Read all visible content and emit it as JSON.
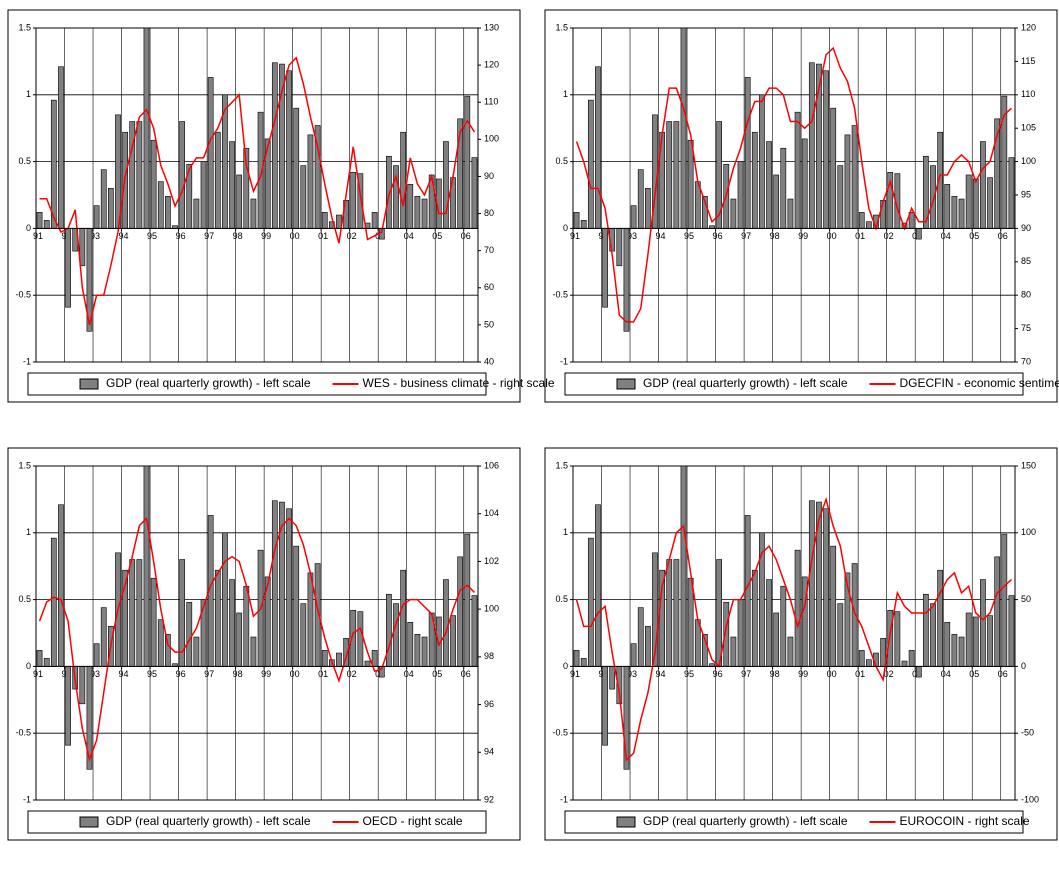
{
  "chart_data": [
    {
      "type": "bar_line",
      "categories": [
        "91",
        null,
        null,
        null,
        "92",
        null,
        null,
        null,
        "93",
        null,
        null,
        null,
        "94",
        null,
        null,
        null,
        "95",
        null,
        null,
        null,
        "96",
        null,
        null,
        null,
        "97",
        null,
        null,
        null,
        "98",
        null,
        null,
        null,
        "99",
        null,
        null,
        null,
        "00",
        null,
        null,
        null,
        "01",
        null,
        null,
        null,
        "02",
        null,
        null,
        null,
        "03",
        null,
        null,
        null,
        "04",
        null,
        null,
        null,
        "05",
        null,
        null,
        null,
        "06",
        null
      ],
      "series": [
        {
          "name": "GDP (real quarterly growth) - left scale",
          "color": "#808080",
          "values": [
            0.12,
            0.06,
            0.96,
            1.21,
            -0.59,
            -0.17,
            -0.28,
            -0.77,
            0.17,
            0.44,
            0.3,
            0.85,
            0.72,
            0.8,
            0.8,
            1.5,
            0.66,
            0.35,
            0.24,
            0.02,
            0.8,
            0.48,
            0.22,
            0.5,
            1.13,
            0.72,
            1.0,
            0.65,
            0.4,
            0.6,
            0.22,
            0.87,
            0.67,
            1.24,
            1.23,
            1.18,
            0.9,
            0.47,
            0.7,
            0.77,
            0.12,
            0.05,
            0.1,
            0.21,
            0.42,
            0.41,
            0.04,
            0.12,
            -0.08,
            0.54,
            0.47,
            0.72,
            0.33,
            0.24,
            0.22,
            0.4,
            0.37,
            0.65,
            0.38,
            0.82,
            0.99,
            0.53
          ]
        },
        {
          "name": "WES - business climate - right scale",
          "color": "#ff0000",
          "axis": "y2",
          "values": [
            84,
            84,
            79,
            75,
            76,
            81,
            60,
            50,
            58,
            58,
            66,
            75,
            90,
            98,
            106,
            108,
            103,
            93,
            88,
            82,
            86,
            92,
            95,
            95,
            100,
            103,
            108,
            110,
            112,
            93,
            86,
            90,
            98,
            105,
            113,
            120,
            122,
            115,
            106,
            98,
            88,
            79,
            72,
            85,
            98,
            85,
            73,
            74,
            75,
            85,
            90,
            82,
            95,
            88,
            85,
            90,
            80,
            80,
            90,
            102,
            105,
            102
          ]
        }
      ],
      "ylim": [
        -1,
        1.5
      ],
      "yticks": [
        -1,
        -0.5,
        0,
        0.5,
        1,
        1.5
      ],
      "y2lim": [
        40,
        130
      ],
      "y2ticks": [
        40,
        50,
        60,
        70,
        80,
        90,
        100,
        110,
        120,
        130
      ],
      "grid": true
    },
    {
      "type": "bar_line",
      "categories": [
        "91",
        null,
        null,
        null,
        "92",
        null,
        null,
        null,
        "93",
        null,
        null,
        null,
        "94",
        null,
        null,
        null,
        "95",
        null,
        null,
        null,
        "96",
        null,
        null,
        null,
        "97",
        null,
        null,
        null,
        "98",
        null,
        null,
        null,
        "99",
        null,
        null,
        null,
        "00",
        null,
        null,
        null,
        "01",
        null,
        null,
        null,
        "02",
        null,
        null,
        null,
        "03",
        null,
        null,
        null,
        "04",
        null,
        null,
        null,
        "05",
        null,
        null,
        null,
        "06",
        null
      ],
      "series": [
        {
          "name": "GDP (real quarterly growth) - left scale",
          "color": "#808080",
          "values": [
            0.12,
            0.06,
            0.96,
            1.21,
            -0.59,
            -0.17,
            -0.28,
            -0.77,
            0.17,
            0.44,
            0.3,
            0.85,
            0.72,
            0.8,
            0.8,
            1.5,
            0.66,
            0.35,
            0.24,
            0.02,
            0.8,
            0.48,
            0.22,
            0.5,
            1.13,
            0.72,
            1.0,
            0.65,
            0.4,
            0.6,
            0.22,
            0.87,
            0.67,
            1.24,
            1.23,
            1.18,
            0.9,
            0.47,
            0.7,
            0.77,
            0.12,
            0.05,
            0.1,
            0.21,
            0.42,
            0.41,
            0.04,
            0.12,
            -0.08,
            0.54,
            0.47,
            0.72,
            0.33,
            0.24,
            0.22,
            0.4,
            0.37,
            0.65,
            0.38,
            0.82,
            0.99,
            0.53
          ]
        },
        {
          "name": "DGECFIN - economic sentiment - right scale",
          "color": "#ff0000",
          "axis": "y2",
          "values": [
            103,
            100,
            96,
            96,
            93,
            86,
            77,
            76,
            76,
            78,
            86,
            95,
            104,
            111,
            111,
            108,
            104,
            97,
            94,
            91,
            92,
            95,
            99,
            102,
            106,
            109,
            109,
            111,
            111,
            110,
            106,
            106,
            105,
            106,
            111,
            116,
            117,
            114,
            112,
            108,
            100,
            93,
            90,
            94,
            97,
            93,
            90,
            93,
            91,
            91,
            94,
            98,
            98,
            100,
            101,
            100,
            97,
            99,
            100,
            104,
            107,
            108
          ]
        }
      ],
      "ylim": [
        -1,
        1.5
      ],
      "yticks": [
        -1,
        -0.5,
        0,
        0.5,
        1,
        1.5
      ],
      "y2lim": [
        70,
        120
      ],
      "y2ticks": [
        70,
        75,
        80,
        85,
        90,
        95,
        100,
        105,
        110,
        115,
        120
      ],
      "grid": true
    },
    {
      "type": "bar_line",
      "categories": [
        "91",
        null,
        null,
        null,
        "92",
        null,
        null,
        null,
        "93",
        null,
        null,
        null,
        "94",
        null,
        null,
        null,
        "95",
        null,
        null,
        null,
        "96",
        null,
        null,
        null,
        "97",
        null,
        null,
        null,
        "98",
        null,
        null,
        null,
        "99",
        null,
        null,
        null,
        "00",
        null,
        null,
        null,
        "01",
        null,
        null,
        null,
        "02",
        null,
        null,
        null,
        "03",
        null,
        null,
        null,
        "04",
        null,
        null,
        null,
        "05",
        null,
        null,
        null,
        "06",
        null
      ],
      "series": [
        {
          "name": "GDP (real quarterly growth) - left scale",
          "color": "#808080",
          "values": [
            0.12,
            0.06,
            0.96,
            1.21,
            -0.59,
            -0.17,
            -0.28,
            -0.77,
            0.17,
            0.44,
            0.3,
            0.85,
            0.72,
            0.8,
            0.8,
            1.5,
            0.66,
            0.35,
            0.24,
            0.02,
            0.8,
            0.48,
            0.22,
            0.5,
            1.13,
            0.72,
            1.0,
            0.65,
            0.4,
            0.6,
            0.22,
            0.87,
            0.67,
            1.24,
            1.23,
            1.18,
            0.9,
            0.47,
            0.7,
            0.77,
            0.12,
            0.05,
            0.1,
            0.21,
            0.42,
            0.41,
            0.04,
            0.12,
            -0.08,
            0.54,
            0.47,
            0.72,
            0.33,
            0.24,
            0.22,
            0.4,
            0.37,
            0.65,
            0.38,
            0.82,
            0.99,
            0.53
          ]
        },
        {
          "name": "OECD - right scale",
          "color": "#ff0000",
          "axis": "y2",
          "values": [
            99.5,
            100.3,
            100.5,
            100.4,
            99.5,
            97,
            95,
            93.7,
            94.5,
            96.5,
            98.5,
            100,
            101,
            102.2,
            103.5,
            103.8,
            102,
            100,
            98.5,
            98.2,
            98.2,
            98.7,
            99.2,
            100.1,
            101,
            101.5,
            102,
            102.2,
            102,
            101,
            99.7,
            100,
            101,
            102.5,
            103.5,
            103.8,
            103.5,
            102.7,
            101.5,
            100,
            98.8,
            97.8,
            97,
            98,
            99,
            99.2,
            98.2,
            97.4,
            97.5,
            98.4,
            99.4,
            100.2,
            100.4,
            100.4,
            100.1,
            99.8,
            98.5,
            99,
            100,
            100.8,
            101,
            100.7
          ]
        }
      ],
      "ylim": [
        -1,
        1.5
      ],
      "yticks": [
        -1,
        -0.5,
        0,
        0.5,
        1,
        1.5
      ],
      "y2lim": [
        92,
        106
      ],
      "y2ticks": [
        92,
        94,
        96,
        98,
        100,
        102,
        104,
        106
      ],
      "grid": true
    },
    {
      "type": "bar_line",
      "categories": [
        "91",
        null,
        null,
        null,
        "92",
        null,
        null,
        null,
        "93",
        null,
        null,
        null,
        "94",
        null,
        null,
        null,
        "95",
        null,
        null,
        null,
        "96",
        null,
        null,
        null,
        "97",
        null,
        null,
        null,
        "98",
        null,
        null,
        null,
        "99",
        null,
        null,
        null,
        "00",
        null,
        null,
        null,
        "01",
        null,
        null,
        null,
        "02",
        null,
        null,
        null,
        "03",
        null,
        null,
        null,
        "04",
        null,
        null,
        null,
        "05",
        null,
        null,
        null,
        "06",
        null
      ],
      "series": [
        {
          "name": "GDP (real quarterly growth) - left scale",
          "color": "#808080",
          "values": [
            0.12,
            0.06,
            0.96,
            1.21,
            -0.59,
            -0.17,
            -0.28,
            -0.77,
            0.17,
            0.44,
            0.3,
            0.85,
            0.72,
            0.8,
            0.8,
            1.5,
            0.66,
            0.35,
            0.24,
            0.02,
            0.8,
            0.48,
            0.22,
            0.5,
            1.13,
            0.72,
            1.0,
            0.65,
            0.4,
            0.6,
            0.22,
            0.87,
            0.67,
            1.24,
            1.23,
            1.18,
            0.9,
            0.47,
            0.7,
            0.77,
            0.12,
            0.05,
            0.1,
            0.21,
            0.42,
            0.41,
            0.04,
            0.12,
            -0.08,
            0.54,
            0.47,
            0.72,
            0.33,
            0.24,
            0.22,
            0.4,
            0.37,
            0.65,
            0.38,
            0.82,
            0.99,
            0.53
          ]
        },
        {
          "name": "EUROCOIN - right scale",
          "color": "#ff0000",
          "axis": "y2",
          "values": [
            50,
            30,
            30,
            40,
            45,
            10,
            -20,
            -70,
            -65,
            -40,
            -20,
            10,
            60,
            80,
            100,
            105,
            70,
            35,
            20,
            5,
            0,
            30,
            50,
            50,
            60,
            70,
            85,
            90,
            80,
            65,
            50,
            30,
            45,
            80,
            110,
            125,
            105,
            90,
            60,
            40,
            30,
            15,
            0,
            -10,
            25,
            55,
            45,
            40,
            40,
            40,
            45,
            55,
            65,
            70,
            55,
            60,
            40,
            35,
            40,
            55,
            60,
            65
          ]
        }
      ],
      "ylim": [
        -1,
        1.5
      ],
      "yticks": [
        -1,
        -0.5,
        0,
        0.5,
        1,
        1.5
      ],
      "y2lim": [
        -100,
        150
      ],
      "y2ticks": [
        -100,
        -50,
        0,
        50,
        100,
        150
      ],
      "grid": true
    }
  ]
}
